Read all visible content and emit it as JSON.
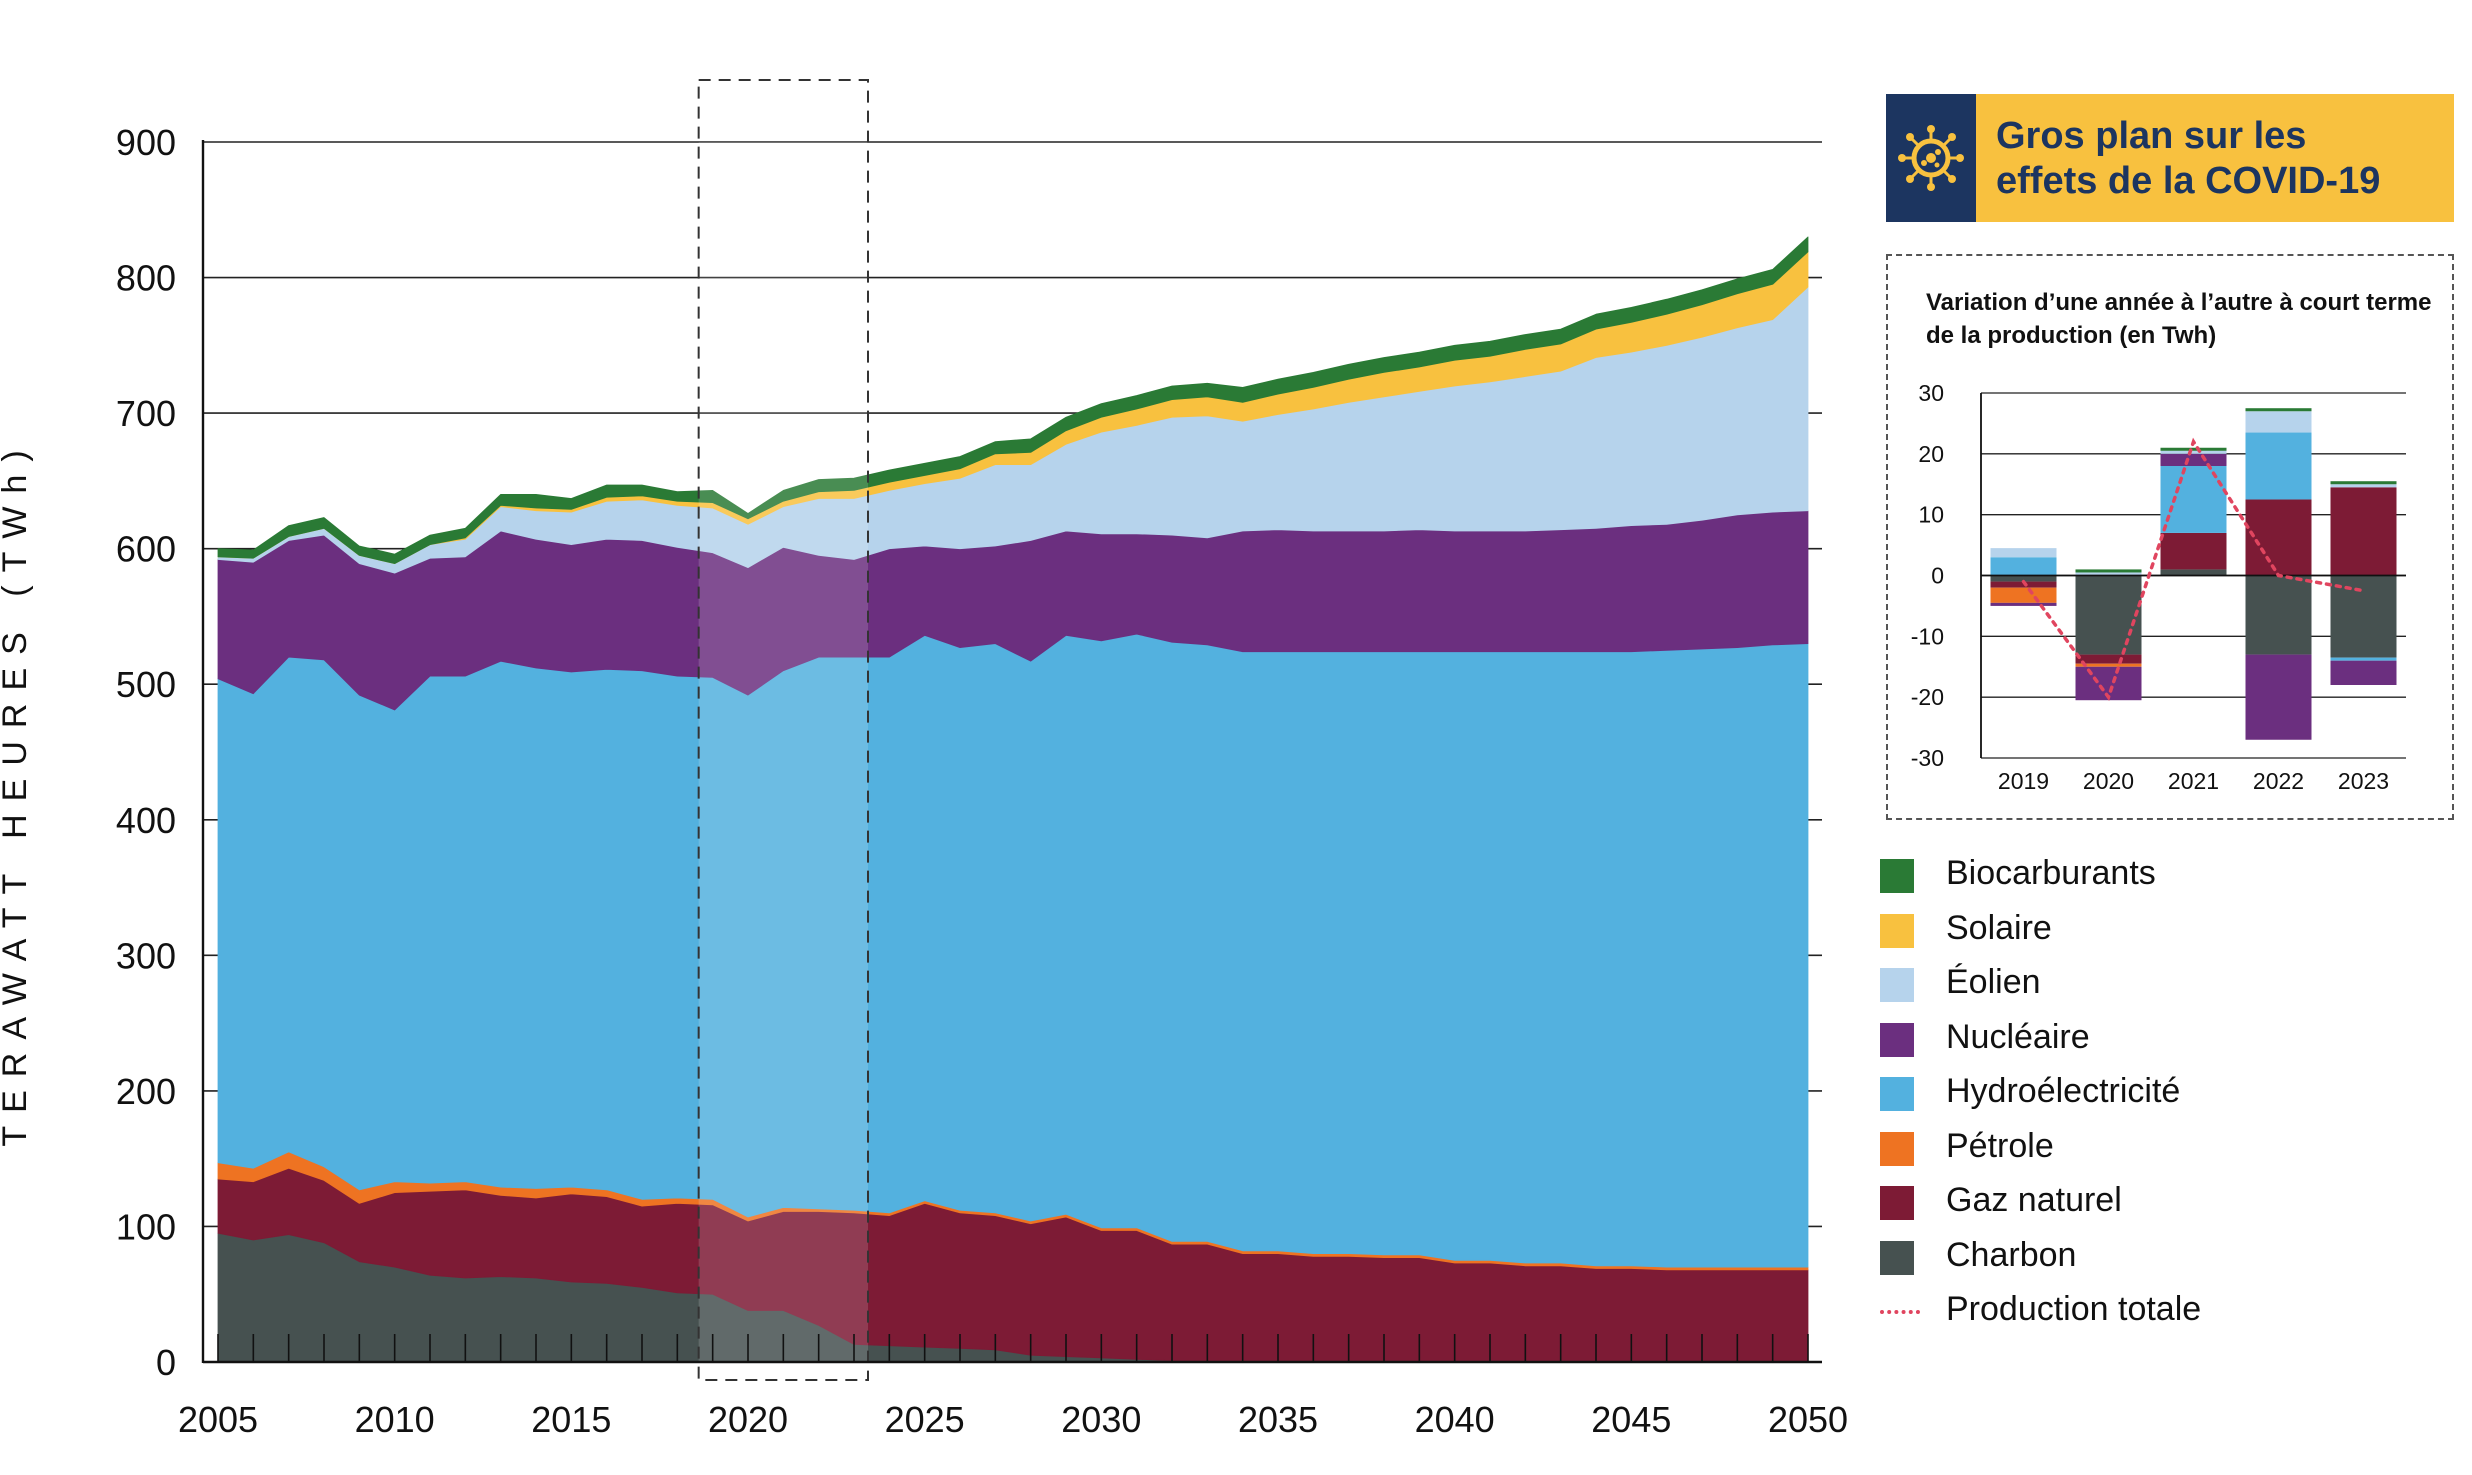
{
  "covid_box": {
    "title_line1": "Gros plan sur les",
    "title_line2": "effets de la COVID-19",
    "icon": "virus-icon"
  },
  "colors": {
    "Charbon": "#465150",
    "Gaz naturel": "#7d1b35",
    "Pétrole": "#ee7322",
    "Hydroélectricité": "#53b1df",
    "Nucléaire": "#6b2f7f",
    "Éolien": "#b6d3ec",
    "Solaire": "#f8c13f",
    "Biocarburants": "#2a7a35",
    "Production totale": "#e0455f",
    "banner_bg": "#f8c13f",
    "banner_icon_bg": "#1c3560",
    "banner_text": "#1c3560"
  },
  "legend": [
    {
      "label": "Biocarburants",
      "kind": "swatch"
    },
    {
      "label": "Solaire",
      "kind": "swatch"
    },
    {
      "label": "Éolien",
      "kind": "swatch"
    },
    {
      "label": "Nucléaire",
      "kind": "swatch"
    },
    {
      "label": "Hydroélectricité",
      "kind": "swatch"
    },
    {
      "label": "Pétrole",
      "kind": "swatch"
    },
    {
      "label": "Gaz naturel",
      "kind": "swatch"
    },
    {
      "label": "Charbon",
      "kind": "swatch"
    },
    {
      "label": "Production totale",
      "kind": "dotted-line"
    }
  ],
  "chart_data": [
    {
      "type": "area",
      "stacked": true,
      "ylabel": "TERAWATT HEURES (TWh)",
      "xlabel": "",
      "ylim": [
        0,
        900
      ],
      "xlim": [
        2005,
        2050
      ],
      "yticks": [
        0,
        100,
        200,
        300,
        400,
        500,
        600,
        700,
        800,
        900
      ],
      "xticks": [
        2005,
        2010,
        2015,
        2020,
        2025,
        2030,
        2035,
        2040,
        2045,
        2050
      ],
      "grid": "horizontal",
      "highlight_range": [
        2019,
        2023
      ],
      "x": [
        2005,
        2006,
        2007,
        2008,
        2009,
        2010,
        2011,
        2012,
        2013,
        2014,
        2015,
        2016,
        2017,
        2018,
        2019,
        2020,
        2021,
        2022,
        2023,
        2024,
        2025,
        2026,
        2027,
        2028,
        2029,
        2030,
        2031,
        2032,
        2033,
        2034,
        2035,
        2036,
        2037,
        2038,
        2039,
        2040,
        2041,
        2042,
        2043,
        2044,
        2045,
        2046,
        2047,
        2048,
        2049,
        2050
      ],
      "series": [
        {
          "name": "Charbon",
          "values": [
            95,
            90,
            94,
            88,
            74,
            70,
            64,
            62,
            63,
            62,
            59,
            58,
            55,
            51,
            50,
            38,
            38,
            27,
            13,
            12,
            11,
            10,
            9,
            5,
            4,
            3,
            2,
            1,
            1,
            1,
            1,
            1,
            1,
            1,
            1,
            0,
            0,
            0,
            0,
            0,
            0,
            0,
            0,
            0,
            0,
            0
          ]
        },
        {
          "name": "Gaz naturel",
          "values": [
            40,
            43,
            49,
            46,
            43,
            55,
            62,
            65,
            60,
            59,
            65,
            64,
            60,
            66,
            66,
            66,
            73,
            84,
            97,
            96,
            106,
            100,
            99,
            97,
            103,
            94,
            95,
            86,
            86,
            79,
            79,
            77,
            77,
            76,
            76,
            73,
            73,
            71,
            71,
            69,
            69,
            68,
            68,
            68,
            68,
            68
          ]
        },
        {
          "name": "Pétrole",
          "values": [
            12,
            10,
            12,
            10,
            10,
            8,
            6,
            6,
            6,
            7,
            5,
            5,
            5,
            4,
            4,
            3,
            3,
            2,
            2,
            2,
            2,
            2,
            2,
            2,
            2,
            2,
            2,
            2,
            2,
            2,
            2,
            2,
            2,
            2,
            2,
            2,
            2,
            2,
            2,
            2,
            2,
            2,
            2,
            2,
            2,
            2
          ]
        },
        {
          "name": "Hydroélectricité",
          "values": [
            357,
            350,
            365,
            374,
            365,
            348,
            374,
            373,
            388,
            384,
            380,
            384,
            390,
            385,
            385,
            385,
            396,
            407,
            408,
            410,
            417,
            415,
            420,
            413,
            427,
            433,
            438,
            442,
            440,
            442,
            442,
            444,
            444,
            445,
            445,
            449,
            449,
            451,
            451,
            453,
            453,
            455,
            456,
            457,
            459,
            460
          ]
        },
        {
          "name": "Nucléaire",
          "values": [
            88,
            97,
            86,
            92,
            97,
            101,
            87,
            88,
            96,
            95,
            94,
            96,
            96,
            95,
            92,
            94,
            91,
            75,
            72,
            80,
            66,
            73,
            72,
            89,
            77,
            79,
            74,
            79,
            79,
            89,
            90,
            89,
            89,
            89,
            90,
            89,
            89,
            89,
            90,
            91,
            93,
            93,
            95,
            98,
            98,
            98
          ]
        },
        {
          "name": "Éolien",
          "values": [
            2,
            3,
            3,
            5,
            6,
            7,
            10,
            13,
            18,
            21,
            24,
            28,
            30,
            31,
            33,
            32,
            30,
            42,
            45,
            43,
            46,
            52,
            60,
            56,
            64,
            75,
            80,
            87,
            90,
            81,
            85,
            90,
            95,
            99,
            102,
            107,
            110,
            114,
            117,
            126,
            128,
            132,
            135,
            138,
            142,
            165
          ]
        },
        {
          "name": "Solaire",
          "values": [
            0,
            0,
            0,
            0,
            0,
            0,
            0,
            1,
            1,
            2,
            2,
            3,
            3,
            3,
            4,
            4,
            4,
            5,
            6,
            6,
            6,
            7,
            8,
            9,
            10,
            11,
            12,
            13,
            14,
            14,
            15,
            16,
            17,
            18,
            18,
            19,
            19,
            20,
            20,
            21,
            22,
            23,
            24,
            25,
            26,
            26
          ]
        },
        {
          "name": "Biocarburants",
          "values": [
            6,
            6,
            8,
            8,
            7,
            7,
            7,
            7,
            8,
            10,
            8,
            9,
            8,
            7,
            9,
            4,
            8,
            9,
            9,
            9,
            9,
            9,
            9,
            10,
            10,
            10,
            10,
            10,
            10,
            11,
            11,
            11,
            11,
            11,
            11,
            11,
            11,
            11,
            11,
            11,
            11,
            11,
            11,
            11,
            11,
            11
          ]
        }
      ]
    },
    {
      "type": "bar",
      "stacked": true,
      "title": "Variation d’une année à l’autre à court terme de la production (en Twh)",
      "categories": [
        "2019",
        "2020",
        "2021",
        "2022",
        "2023"
      ],
      "ylim": [
        -30,
        30
      ],
      "yticks": [
        30,
        20,
        10,
        0,
        -10,
        -20,
        -30
      ],
      "grid": "horizontal",
      "series": [
        {
          "name": "Charbon",
          "values": [
            -1,
            -13,
            1,
            -13,
            -13.5
          ]
        },
        {
          "name": "Gaz naturel",
          "values": [
            -1,
            -1.5,
            6,
            12.5,
            14.5
          ]
        },
        {
          "name": "Pétrole",
          "values": [
            -2.5,
            -0.5,
            0,
            0,
            0
          ]
        },
        {
          "name": "Hydroélectricité",
          "values": [
            3,
            0,
            11,
            11,
            -0.5
          ]
        },
        {
          "name": "Nucléaire",
          "values": [
            -0.5,
            -5.5,
            2,
            -14,
            -4
          ]
        },
        {
          "name": "Éolien",
          "values": [
            1.5,
            0.5,
            0.5,
            3.5,
            0.5
          ]
        },
        {
          "name": "Solaire",
          "values": [
            0,
            0,
            0,
            0,
            0
          ]
        },
        {
          "name": "Biocarburants",
          "values": [
            0,
            0.5,
            0.5,
            0.5,
            0.5
          ]
        }
      ],
      "line": {
        "name": "Production totale",
        "values": [
          -1,
          -20,
          22,
          0,
          -2.5
        ]
      }
    }
  ]
}
